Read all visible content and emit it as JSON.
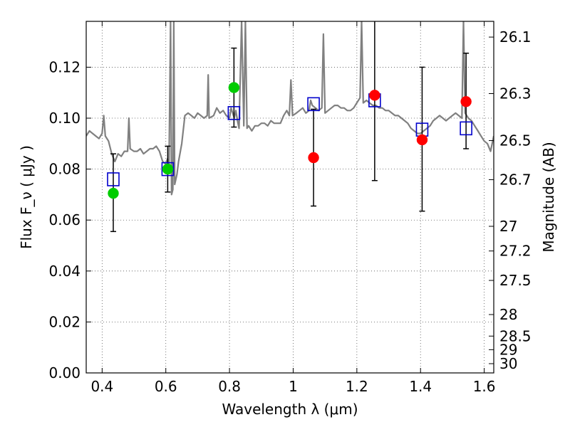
{
  "chart_data": {
    "type": "scatter",
    "xlabel": "Wavelength  λ (μm)",
    "ylabel": "Flux  F_ν  ( μJy )",
    "y2label": "Magnitude (AB)",
    "xlim": [
      0.35,
      1.63
    ],
    "ylim": [
      0.0,
      0.138
    ],
    "grid": true,
    "x_ticks": [
      {
        "v": 0.4,
        "label": "0.4"
      },
      {
        "v": 0.6,
        "label": "0.6"
      },
      {
        "v": 0.8,
        "label": "0.8"
      },
      {
        "v": 1.0,
        "label": "1"
      },
      {
        "v": 1.2,
        "label": "1.2"
      },
      {
        "v": 1.4,
        "label": "1.4"
      },
      {
        "v": 1.6,
        "label": "1.6"
      }
    ],
    "y_ticks": [
      {
        "v": 0.0,
        "label": "0.00"
      },
      {
        "v": 0.02,
        "label": "0.02"
      },
      {
        "v": 0.04,
        "label": "0.04"
      },
      {
        "v": 0.06,
        "label": "0.06"
      },
      {
        "v": 0.08,
        "label": "0.08"
      },
      {
        "v": 0.1,
        "label": "0.10"
      },
      {
        "v": 0.12,
        "label": "0.12"
      }
    ],
    "y2_ticks": [
      {
        "mag": 26.1,
        "label": "26.1"
      },
      {
        "mag": 26.3,
        "label": "26.3"
      },
      {
        "mag": 26.5,
        "label": "26.5"
      },
      {
        "mag": 26.7,
        "label": "26.7"
      },
      {
        "mag": 27,
        "label": "27"
      },
      {
        "mag": 27.2,
        "label": "27.2"
      },
      {
        "mag": 27.5,
        "label": "27.5"
      },
      {
        "mag": 28,
        "label": "28"
      },
      {
        "mag": 28.5,
        "label": "28.5"
      },
      {
        "mag": 29,
        "label": "29"
      },
      {
        "mag": 30,
        "label": "30"
      }
    ],
    "colors": {
      "template": "#808080",
      "detected": "#00cc00",
      "upper": "#ff0000",
      "model": "#0000cc",
      "errorbar": "#000000",
      "grid": "#555555"
    },
    "template_spectrum": [
      [
        0.35,
        0.093
      ],
      [
        0.36,
        0.095
      ],
      [
        0.37,
        0.094
      ],
      [
        0.38,
        0.093
      ],
      [
        0.39,
        0.092
      ],
      [
        0.4,
        0.094
      ],
      [
        0.405,
        0.101
      ],
      [
        0.41,
        0.093
      ],
      [
        0.42,
        0.091
      ],
      [
        0.43,
        0.086
      ],
      [
        0.44,
        0.083
      ],
      [
        0.45,
        0.086
      ],
      [
        0.46,
        0.085
      ],
      [
        0.47,
        0.087
      ],
      [
        0.48,
        0.087
      ],
      [
        0.484,
        0.1
      ],
      [
        0.488,
        0.088
      ],
      [
        0.5,
        0.087
      ],
      [
        0.51,
        0.087
      ],
      [
        0.52,
        0.088
      ],
      [
        0.53,
        0.086
      ],
      [
        0.54,
        0.087
      ],
      [
        0.55,
        0.088
      ],
      [
        0.56,
        0.088
      ],
      [
        0.57,
        0.089
      ],
      [
        0.58,
        0.087
      ],
      [
        0.59,
        0.083
      ],
      [
        0.6,
        0.082
      ],
      [
        0.605,
        0.084
      ],
      [
        0.61,
        0.081
      ],
      [
        0.615,
        0.138
      ],
      [
        0.618,
        0.07
      ],
      [
        0.622,
        0.072
      ],
      [
        0.625,
        0.138
      ],
      [
        0.628,
        0.074
      ],
      [
        0.635,
        0.078
      ],
      [
        0.64,
        0.083
      ],
      [
        0.65,
        0.09
      ],
      [
        0.66,
        0.101
      ],
      [
        0.67,
        0.102
      ],
      [
        0.68,
        0.101
      ],
      [
        0.69,
        0.1
      ],
      [
        0.7,
        0.102
      ],
      [
        0.71,
        0.101
      ],
      [
        0.72,
        0.1
      ],
      [
        0.73,
        0.101
      ],
      [
        0.733,
        0.117
      ],
      [
        0.736,
        0.1
      ],
      [
        0.75,
        0.101
      ],
      [
        0.76,
        0.104
      ],
      [
        0.77,
        0.102
      ],
      [
        0.78,
        0.103
      ],
      [
        0.79,
        0.101
      ],
      [
        0.8,
        0.1
      ],
      [
        0.805,
        0.104
      ],
      [
        0.81,
        0.102
      ],
      [
        0.815,
        0.1
      ],
      [
        0.82,
        0.103
      ],
      [
        0.825,
        0.099
      ],
      [
        0.83,
        0.096
      ],
      [
        0.838,
        0.138
      ],
      [
        0.845,
        0.097
      ],
      [
        0.85,
        0.138
      ],
      [
        0.855,
        0.096
      ],
      [
        0.86,
        0.097
      ],
      [
        0.87,
        0.095
      ],
      [
        0.88,
        0.097
      ],
      [
        0.89,
        0.097
      ],
      [
        0.9,
        0.098
      ],
      [
        0.91,
        0.098
      ],
      [
        0.92,
        0.097
      ],
      [
        0.93,
        0.099
      ],
      [
        0.94,
        0.098
      ],
      [
        0.95,
        0.098
      ],
      [
        0.96,
        0.098
      ],
      [
        0.97,
        0.101
      ],
      [
        0.98,
        0.103
      ],
      [
        0.988,
        0.101
      ],
      [
        0.993,
        0.115
      ],
      [
        0.998,
        0.101
      ],
      [
        1.01,
        0.102
      ],
      [
        1.02,
        0.103
      ],
      [
        1.03,
        0.104
      ],
      [
        1.04,
        0.102
      ],
      [
        1.05,
        0.103
      ],
      [
        1.055,
        0.107
      ],
      [
        1.06,
        0.105
      ],
      [
        1.07,
        0.104
      ],
      [
        1.08,
        0.103
      ],
      [
        1.09,
        0.104
      ],
      [
        1.095,
        0.133
      ],
      [
        1.1,
        0.102
      ],
      [
        1.11,
        0.103
      ],
      [
        1.12,
        0.104
      ],
      [
        1.13,
        0.105
      ],
      [
        1.14,
        0.105
      ],
      [
        1.15,
        0.104
      ],
      [
        1.16,
        0.104
      ],
      [
        1.17,
        0.103
      ],
      [
        1.18,
        0.103
      ],
      [
        1.19,
        0.104
      ],
      [
        1.2,
        0.106
      ],
      [
        1.21,
        0.108
      ],
      [
        1.215,
        0.138
      ],
      [
        1.22,
        0.106
      ],
      [
        1.23,
        0.107
      ],
      [
        1.24,
        0.106
      ],
      [
        1.25,
        0.105
      ],
      [
        1.26,
        0.105
      ],
      [
        1.27,
        0.104
      ],
      [
        1.28,
        0.104
      ],
      [
        1.29,
        0.103
      ],
      [
        1.3,
        0.103
      ],
      [
        1.31,
        0.102
      ],
      [
        1.32,
        0.101
      ],
      [
        1.33,
        0.101
      ],
      [
        1.34,
        0.1
      ],
      [
        1.35,
        0.099
      ],
      [
        1.36,
        0.098
      ],
      [
        1.37,
        0.096
      ],
      [
        1.38,
        0.095
      ],
      [
        1.39,
        0.094
      ],
      [
        1.4,
        0.094
      ],
      [
        1.41,
        0.095
      ],
      [
        1.42,
        0.096
      ],
      [
        1.43,
        0.097
      ],
      [
        1.44,
        0.099
      ],
      [
        1.45,
        0.1
      ],
      [
        1.46,
        0.101
      ],
      [
        1.47,
        0.1
      ],
      [
        1.48,
        0.099
      ],
      [
        1.49,
        0.1
      ],
      [
        1.5,
        0.101
      ],
      [
        1.51,
        0.102
      ],
      [
        1.52,
        0.101
      ],
      [
        1.53,
        0.1
      ],
      [
        1.535,
        0.138
      ],
      [
        1.54,
        0.102
      ],
      [
        1.55,
        0.1
      ],
      [
        1.56,
        0.099
      ],
      [
        1.57,
        0.097
      ],
      [
        1.58,
        0.095
      ],
      [
        1.59,
        0.093
      ],
      [
        1.6,
        0.091
      ],
      [
        1.61,
        0.09
      ],
      [
        1.62,
        0.087
      ],
      [
        1.63,
        0.093
      ]
    ],
    "observed": [
      {
        "x": 0.435,
        "y": 0.0705,
        "err_low": 0.0555,
        "err_high": 0.086,
        "type": "detected"
      },
      {
        "x": 0.606,
        "y": 0.08,
        "err_low": 0.071,
        "err_high": 0.089,
        "type": "detected"
      },
      {
        "x": 0.814,
        "y": 0.112,
        "err_low": 0.0965,
        "err_high": 0.1275,
        "type": "detected"
      },
      {
        "x": 1.064,
        "y": 0.0845,
        "err_low": 0.0655,
        "err_high": 0.1035,
        "type": "upper"
      },
      {
        "x": 1.256,
        "y": 0.109,
        "err_low": 0.0755,
        "err_high": 0.14,
        "type": "upper"
      },
      {
        "x": 1.405,
        "y": 0.0915,
        "err_low": 0.0635,
        "err_high": 0.12,
        "type": "upper"
      },
      {
        "x": 1.543,
        "y": 0.1065,
        "err_low": 0.088,
        "err_high": 0.1255,
        "type": "upper"
      }
    ],
    "model_points": [
      {
        "x": 0.435,
        "y": 0.076
      },
      {
        "x": 0.606,
        "y": 0.08
      },
      {
        "x": 0.814,
        "y": 0.102
      },
      {
        "x": 1.064,
        "y": 0.1055
      },
      {
        "x": 1.256,
        "y": 0.107
      },
      {
        "x": 1.405,
        "y": 0.0955
      },
      {
        "x": 1.543,
        "y": 0.096
      }
    ]
  }
}
